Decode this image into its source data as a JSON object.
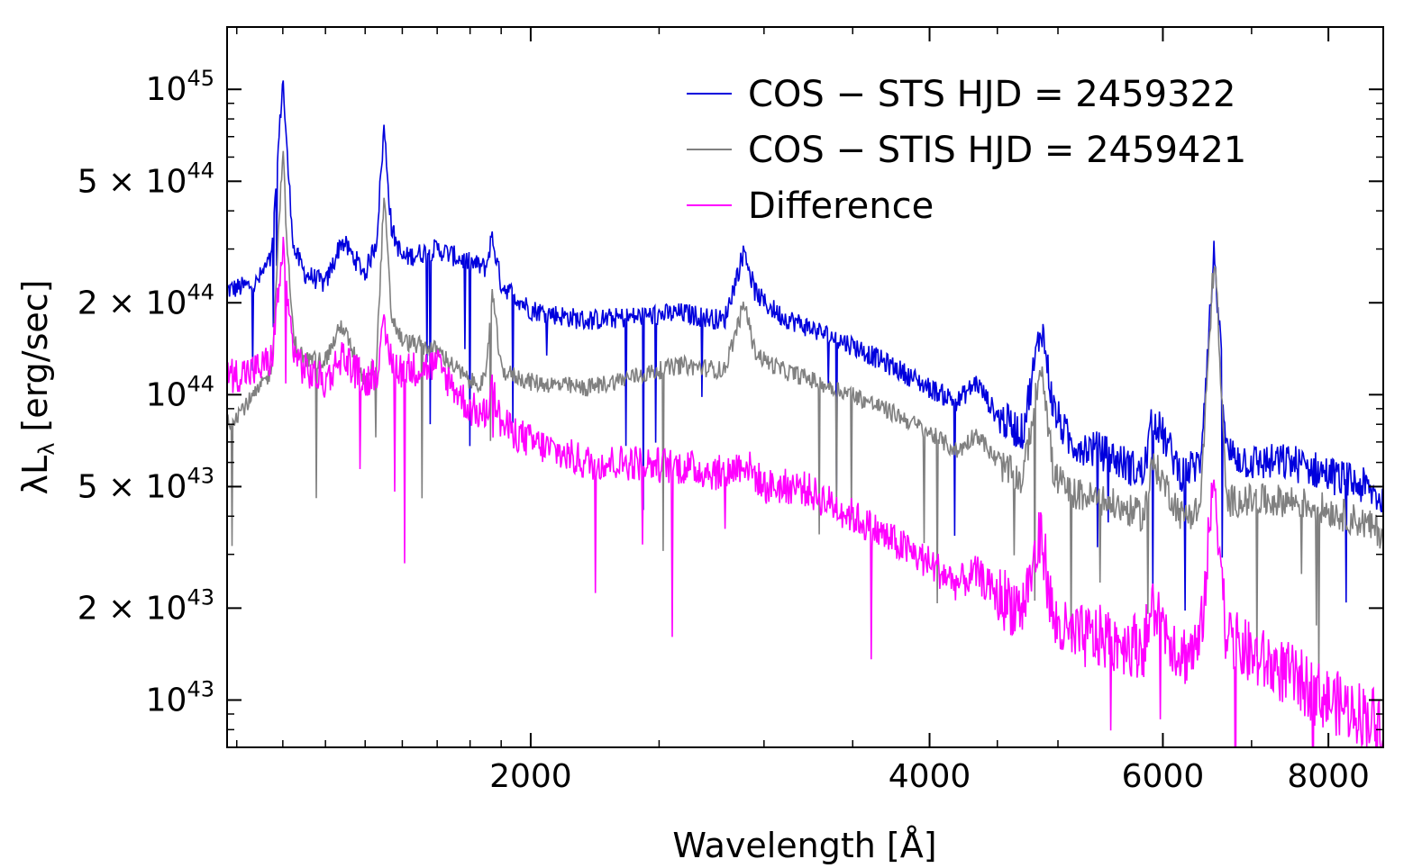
{
  "chart_data": {
    "type": "line",
    "xlabel": "Wavelength [Å]",
    "ylabel": "λL",
    "ylabel_sub": "λ",
    "ylabel_suffix": " [erg/sec]",
    "x_scale": "log",
    "y_scale": "log",
    "xlim": [
      1180,
      8800
    ],
    "ylim": [
      7e+42,
      1.6e+45
    ],
    "x_ticks": [
      {
        "value": 2000,
        "label": "2000"
      },
      {
        "value": 4000,
        "label": "4000"
      },
      {
        "value": 6000,
        "label": "6000"
      },
      {
        "value": 8000,
        "label": "8000"
      }
    ],
    "y_ticks": [
      {
        "value": 1e+43,
        "mant": "",
        "exp": "43"
      },
      {
        "value": 2e+43,
        "mant": "2 × ",
        "exp": "43"
      },
      {
        "value": 5e+43,
        "mant": "5 × ",
        "exp": "43"
      },
      {
        "value": 1e+44,
        "mant": "",
        "exp": "44"
      },
      {
        "value": 2e+44,
        "mant": "2 × ",
        "exp": "44"
      },
      {
        "value": 5e+44,
        "mant": "5 × ",
        "exp": "44"
      },
      {
        "value": 1e+45,
        "mant": "",
        "exp": "45"
      }
    ],
    "y_tick_base": "10",
    "legend_position": "top-right",
    "series": [
      {
        "name": "COS − STS HJD = 2459322",
        "color": "#0000dd",
        "x": [
          1180,
          1240,
          1275,
          1300,
          1310,
          1325,
          1350,
          1400,
          1440,
          1500,
          1530,
          1550,
          1570,
          1600,
          1700,
          1800,
          1850,
          1870,
          1900,
          2000,
          2200,
          2400,
          2600,
          2800,
          2900,
          2950,
          3000,
          3100,
          3200,
          3500,
          3800,
          4000,
          4200,
          4340,
          4500,
          4700,
          4860,
          4960,
          5100,
          5400,
          5800,
          5900,
          6200,
          6400,
          6563,
          6700,
          7000,
          7500,
          8000,
          8500,
          8800
        ],
        "y": [
          2.2e+44,
          2.3e+44,
          2.8e+44,
          1.1e+45,
          6e+44,
          3e+44,
          2.5e+44,
          2.3e+44,
          3.2e+44,
          2.5e+44,
          3.2e+44,
          7.5e+44,
          3.5e+44,
          2.8e+44,
          3e+44,
          2.7e+44,
          2.6e+44,
          3.3e+44,
          2.3e+44,
          1.9e+44,
          1.75e+44,
          1.8e+44,
          1.85e+44,
          1.75e+44,
          3e+44,
          2.2e+44,
          2e+44,
          1.8e+44,
          1.7e+44,
          1.45e+44,
          1.2e+44,
          1.05e+44,
          9.5e+43,
          1.1e+44,
          8.5e+43,
          7.5e+43,
          1.7e+44,
          9e+43,
          7e+43,
          6.5e+43,
          5.5e+43,
          8.5e+43,
          5.5e+43,
          6e+43,
          3e+44,
          6.5e+43,
          6e+43,
          6e+43,
          5.5e+43,
          5e+43,
          4.5e+43
        ]
      },
      {
        "name": "COS − STIS HJD = 2459421",
        "color": "#808080",
        "x": [
          1180,
          1240,
          1275,
          1300,
          1310,
          1325,
          1350,
          1400,
          1440,
          1500,
          1530,
          1550,
          1570,
          1600,
          1700,
          1800,
          1850,
          1870,
          1900,
          2000,
          2200,
          2400,
          2600,
          2800,
          2900,
          2950,
          3000,
          3100,
          3200,
          3500,
          3800,
          4000,
          4200,
          4340,
          4500,
          4700,
          4860,
          4960,
          5100,
          5400,
          5800,
          5900,
          6200,
          6400,
          6563,
          6700,
          7000,
          7500,
          8000,
          8500,
          8800
        ],
        "y": [
          8e+43,
          1e+44,
          1.2e+44,
          6.5e+44,
          3e+44,
          1.5e+44,
          1.3e+44,
          1.3e+44,
          1.7e+44,
          1.1e+44,
          1.3e+44,
          4.5e+44,
          1.8e+44,
          1.5e+44,
          1.4e+44,
          1.1e+44,
          1.1e+44,
          2.2e+44,
          1.2e+44,
          1.1e+44,
          1.05e+44,
          1.15e+44,
          1.25e+44,
          1.2e+44,
          2e+44,
          1.4e+44,
          1.3e+44,
          1.2e+44,
          1.15e+44,
          1e+44,
          8.5e+43,
          7.5e+43,
          6.5e+43,
          7.5e+43,
          6e+43,
          5.2e+43,
          1.3e+44,
          5.5e+43,
          4.8e+43,
          4.5e+43,
          4e+43,
          6e+43,
          4e+43,
          4.2e+43,
          3e+44,
          4.5e+43,
          4.5e+43,
          4.5e+43,
          4.2e+43,
          3.8e+43,
          3.5e+43
        ]
      },
      {
        "name": "Difference",
        "color": "#ff00ff",
        "x": [
          1180,
          1240,
          1275,
          1300,
          1310,
          1325,
          1350,
          1400,
          1440,
          1500,
          1530,
          1550,
          1570,
          1600,
          1700,
          1800,
          1850,
          1870,
          1900,
          2000,
          2200,
          2400,
          2600,
          2800,
          2900,
          2950,
          3000,
          3100,
          3200,
          3500,
          3800,
          4000,
          4200,
          4340,
          4500,
          4700,
          4860,
          4960,
          5100,
          5400,
          5800,
          5900,
          6200,
          6400,
          6563,
          6700,
          7000,
          7500,
          8000,
          8500,
          8800
        ],
        "y": [
          1.15e+44,
          1.2e+44,
          1.3e+44,
          3e+44,
          2e+44,
          1.4e+44,
          1.2e+44,
          1.1e+44,
          1.35e+44,
          1.1e+44,
          1.2e+44,
          1.6e+44,
          1.3e+44,
          1.2e+44,
          1.25e+44,
          9e+43,
          8.5e+43,
          1.05e+44,
          8e+43,
          7e+43,
          6e+43,
          6e+43,
          5.8e+43,
          5.5e+43,
          6e+43,
          5.5e+43,
          5e+43,
          5e+43,
          5e+43,
          4e+43,
          3.2e+43,
          2.8e+43,
          2.4e+43,
          2.6e+43,
          2.2e+43,
          2e+43,
          3.5e+43,
          1.8e+43,
          1.6e+43,
          1.6e+43,
          1.5e+43,
          2e+43,
          1.4e+43,
          1.5e+43,
          5.5e+43,
          1.6e+43,
          1.4e+43,
          1.2e+43,
          1e+43,
          9e+42,
          8.5e+42
        ]
      }
    ]
  }
}
